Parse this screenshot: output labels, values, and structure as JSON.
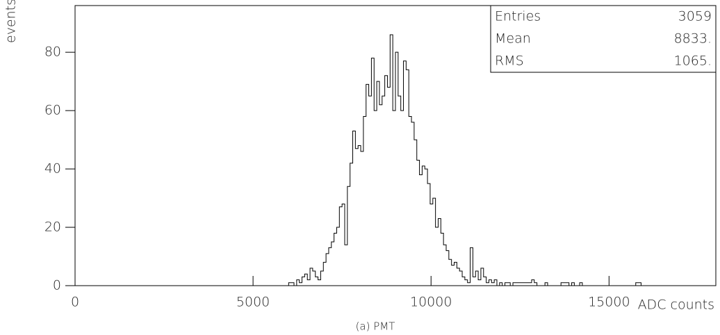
{
  "chart_data": {
    "type": "histogram",
    "caption": "(a) PMT",
    "xlabel": "ADC counts",
    "ylabel": "events",
    "stats": [
      {
        "label": "Entries",
        "value": "3059"
      },
      {
        "label": "Mean",
        "value": "8833."
      },
      {
        "label": "RMS",
        "value": "1065."
      }
    ],
    "bins": [
      6000,
      6075,
      6150,
      6225,
      6300,
      6375,
      6450,
      6525,
      6600,
      6675,
      6750,
      6825,
      6900,
      6975,
      7050,
      7125,
      7200,
      7275,
      7350,
      7425,
      7500,
      7575,
      7650,
      7725,
      7800,
      7875,
      7950,
      8025,
      8100,
      8175,
      8250,
      8325,
      8400,
      8475,
      8550,
      8625,
      8700,
      8775,
      8850,
      8925,
      9000,
      9075,
      9150,
      9225,
      9300,
      9375,
      9450,
      9525,
      9600,
      9675,
      9750,
      9825,
      9900,
      9975,
      10050,
      10125,
      10200,
      10275,
      10350,
      10425,
      10500,
      10575,
      10650,
      10725,
      10800,
      10875,
      10950,
      11025,
      11100,
      11175,
      11250,
      11325,
      11400,
      11475,
      11550,
      11625,
      11700,
      11775,
      11850,
      11925,
      12000,
      12075,
      12150,
      12225,
      12300,
      12375,
      12450,
      12525,
      12600,
      12675,
      12750,
      12825,
      12900,
      12975,
      13050,
      13125,
      13200,
      13275,
      13350,
      13425,
      13500,
      13575,
      13650,
      13725,
      13800,
      13875,
      13950,
      14025,
      14100,
      14175,
      14250,
      14325,
      14400,
      14475,
      14550,
      14625,
      14700,
      14775,
      14850,
      14925,
      15000,
      15075,
      15150,
      15225,
      15300,
      15375,
      15450,
      15525,
      15600,
      15675,
      15750,
      15825,
      15900
    ],
    "values": [
      1,
      1,
      0,
      2,
      1,
      3,
      4,
      2,
      6,
      5,
      3,
      2,
      5,
      8,
      11,
      13,
      15,
      18,
      20,
      27,
      28,
      14,
      34,
      42,
      53,
      47,
      48,
      46,
      58,
      69,
      65,
      78,
      60,
      70,
      62,
      65,
      72,
      68,
      86,
      60,
      80,
      65,
      60,
      77,
      74,
      58,
      56,
      50,
      43,
      38,
      41,
      40,
      35,
      28,
      30,
      20,
      23,
      18,
      14,
      12,
      9,
      7,
      8,
      6,
      5,
      3,
      2,
      1,
      13,
      3,
      5,
      2,
      6,
      3,
      1,
      2,
      1,
      2,
      0,
      1,
      0,
      1,
      1,
      0,
      1,
      1,
      1,
      1,
      1,
      1,
      1,
      2,
      1,
      0,
      0,
      0,
      1,
      0,
      0,
      0,
      0,
      0,
      1,
      1,
      1,
      0,
      1,
      0,
      0,
      1,
      0,
      0,
      0,
      0,
      0,
      0,
      0,
      0,
      0,
      0,
      0,
      0,
      0,
      0,
      0,
      0,
      0,
      0,
      0,
      0,
      1,
      1
    ],
    "color": "#000000",
    "xlim": [
      0,
      18000
    ],
    "xticks": [
      0,
      5000,
      10000,
      15000
    ],
    "ylim": [
      0,
      96
    ],
    "yticks": [
      0,
      20,
      40,
      60,
      80
    ]
  }
}
